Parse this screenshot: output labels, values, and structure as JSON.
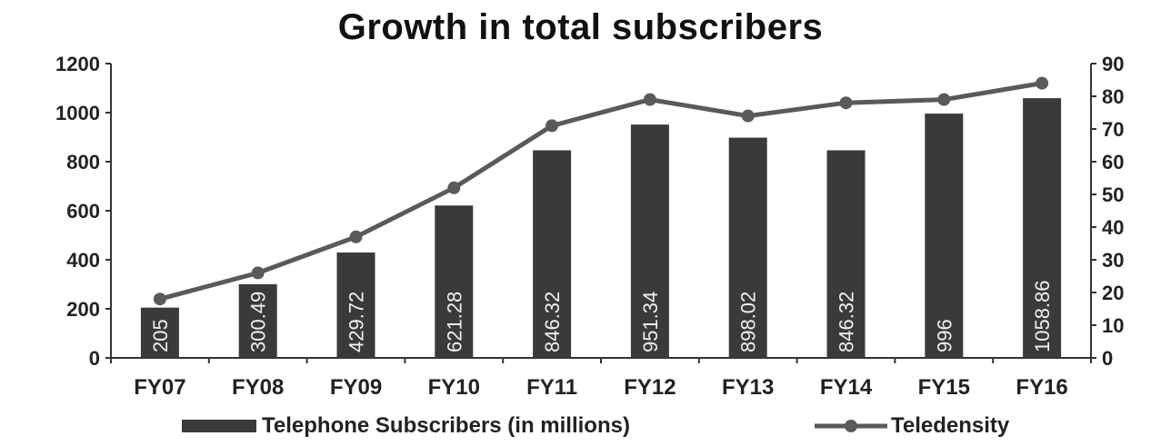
{
  "chart_data": {
    "type": "bar",
    "title": "Growth in total subscribers",
    "categories": [
      "FY07",
      "FY08",
      "FY09",
      "FY10",
      "FY11",
      "FY12",
      "FY13",
      "FY14",
      "FY15",
      "FY16"
    ],
    "series": [
      {
        "name": "Telephone Subscribers (in millions)",
        "type": "bar",
        "axis": "left",
        "values": [
          205,
          300.49,
          429.72,
          621.28,
          846.32,
          951.34,
          898.02,
          846.32,
          996,
          1058.86
        ],
        "labels": [
          "205",
          "300.49",
          "429.72",
          "621.28",
          "846.32",
          "951.34",
          "898.02",
          "846.32",
          "996",
          "1058.86"
        ],
        "color": "#3a3a3a"
      },
      {
        "name": "Teledensity",
        "type": "line",
        "axis": "right",
        "values": [
          18,
          26,
          37,
          52,
          71,
          79,
          74,
          78,
          79,
          84
        ],
        "color": "#5a5a5a"
      }
    ],
    "y_left": {
      "min": 0,
      "max": 1200,
      "ticks": [
        "0",
        "200",
        "400",
        "600",
        "800",
        "1000",
        "1200"
      ]
    },
    "y_right": {
      "min": 0,
      "max": 90,
      "ticks": [
        "0",
        "10",
        "20",
        "30",
        "40",
        "50",
        "60",
        "70",
        "80",
        "90"
      ]
    },
    "grid": false,
    "legend_position": "bottom"
  }
}
